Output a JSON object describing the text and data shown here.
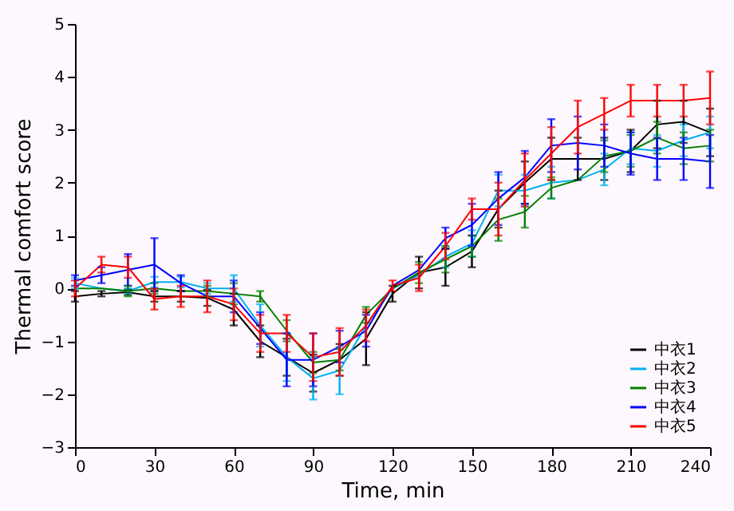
{
  "chart_data": {
    "type": "line",
    "xlabel": "Time, min",
    "ylabel": "Thermal comfort score",
    "x": [
      0,
      10,
      20,
      30,
      40,
      50,
      60,
      70,
      80,
      90,
      100,
      110,
      120,
      130,
      140,
      150,
      160,
      170,
      180,
      190,
      200,
      210,
      220,
      230,
      240
    ],
    "xlim": [
      0,
      240
    ],
    "xticks": [
      0,
      30,
      60,
      90,
      120,
      150,
      180,
      210,
      240
    ],
    "ylim": [
      -3,
      5
    ],
    "yticks": [
      -3,
      -2,
      -1,
      0,
      1,
      2,
      3,
      4,
      5
    ],
    "grid": false,
    "legend": "bottom right",
    "marker": "none",
    "line_style": "solid",
    "series": [
      {
        "name": "中衣1",
        "color": "#000000",
        "values": [
          -0.15,
          -0.1,
          -0.07,
          -0.15,
          -0.15,
          -0.18,
          -0.4,
          -1.0,
          -1.3,
          -1.6,
          -1.35,
          -0.95,
          -0.1,
          0.3,
          0.4,
          0.7,
          1.5,
          2.0,
          2.45,
          2.45,
          2.45,
          2.6,
          3.1,
          3.15,
          2.95
        ],
        "errors": [
          0.1,
          0.05,
          0.05,
          0.1,
          0.1,
          0.15,
          0.3,
          0.3,
          0.35,
          0.35,
          0.3,
          0.5,
          0.15,
          0.3,
          0.35,
          0.3,
          0.35,
          0.4,
          0.4,
          0.4,
          0.4,
          0.4,
          0.45,
          0.4,
          0.45
        ]
      },
      {
        "name": "中衣2",
        "color": "#00b0f0",
        "values": [
          0.1,
          0.0,
          -0.05,
          0.12,
          0.12,
          0.0,
          0.0,
          -0.7,
          -1.3,
          -1.7,
          -1.55,
          -0.7,
          0.0,
          0.25,
          0.6,
          0.85,
          1.85,
          1.85,
          2.0,
          2.05,
          2.25,
          2.65,
          2.6,
          2.8,
          2.95
        ],
        "errors": [
          0.1,
          null,
          0.05,
          0.1,
          0.1,
          0.1,
          0.25,
          0.4,
          0.45,
          0.4,
          0.45,
          null,
          null,
          null,
          0.2,
          0.25,
          0.3,
          0.3,
          0.3,
          null,
          0.3,
          0.3,
          0.3,
          0.3,
          0.3
        ]
      },
      {
        "name": "中衣3",
        "color": "#008000",
        "values": [
          0.0,
          0.0,
          -0.05,
          0.0,
          -0.05,
          -0.05,
          -0.1,
          -0.15,
          -0.8,
          -1.4,
          -1.35,
          -0.5,
          0.0,
          0.3,
          0.55,
          0.8,
          1.3,
          1.45,
          1.9,
          2.05,
          2.5,
          2.6,
          2.85,
          2.65,
          2.7
        ],
        "errors": [
          null,
          null,
          0.1,
          0.1,
          null,
          0.1,
          0.2,
          0.1,
          0.2,
          0.2,
          0.2,
          0.15,
          null,
          0.2,
          0.25,
          0.2,
          0.4,
          0.3,
          0.2,
          null,
          0.3,
          0.3,
          0.3,
          0.3,
          0.3
        ]
      },
      {
        "name": "中衣4",
        "color": "#0000ff",
        "values": [
          0.15,
          0.25,
          0.35,
          0.45,
          0.1,
          -0.15,
          -0.15,
          -0.75,
          -1.35,
          -1.35,
          -1.1,
          -0.8,
          0.05,
          0.35,
          0.95,
          1.2,
          1.7,
          2.1,
          2.7,
          2.75,
          2.7,
          2.55,
          2.45,
          2.45,
          2.4
        ],
        "errors": [
          0.1,
          0.15,
          0.3,
          0.5,
          0.15,
          null,
          0.3,
          0.3,
          0.5,
          0.5,
          0.3,
          0.3,
          null,
          null,
          0.2,
          0.4,
          0.5,
          0.5,
          0.5,
          0.5,
          0.4,
          0.4,
          0.4,
          0.4,
          0.5
        ]
      },
      {
        "name": "中衣5",
        "color": "#ff0000",
        "values": [
          0.0,
          0.45,
          0.4,
          -0.2,
          -0.15,
          -0.15,
          -0.3,
          -0.85,
          -0.85,
          -1.3,
          -1.2,
          -0.7,
          0.05,
          0.2,
          0.8,
          1.5,
          1.5,
          2.05,
          2.55,
          3.05,
          3.3,
          3.55,
          3.55,
          3.55,
          3.6
        ],
        "errors": [
          0.15,
          0.15,
          0.2,
          0.2,
          0.2,
          0.3,
          0.3,
          0.35,
          0.35,
          0.45,
          0.45,
          0.3,
          0.1,
          0.25,
          0.25,
          0.2,
          0.5,
          0.5,
          0.5,
          0.5,
          0.3,
          0.3,
          0.3,
          0.3,
          0.5
        ]
      }
    ]
  }
}
